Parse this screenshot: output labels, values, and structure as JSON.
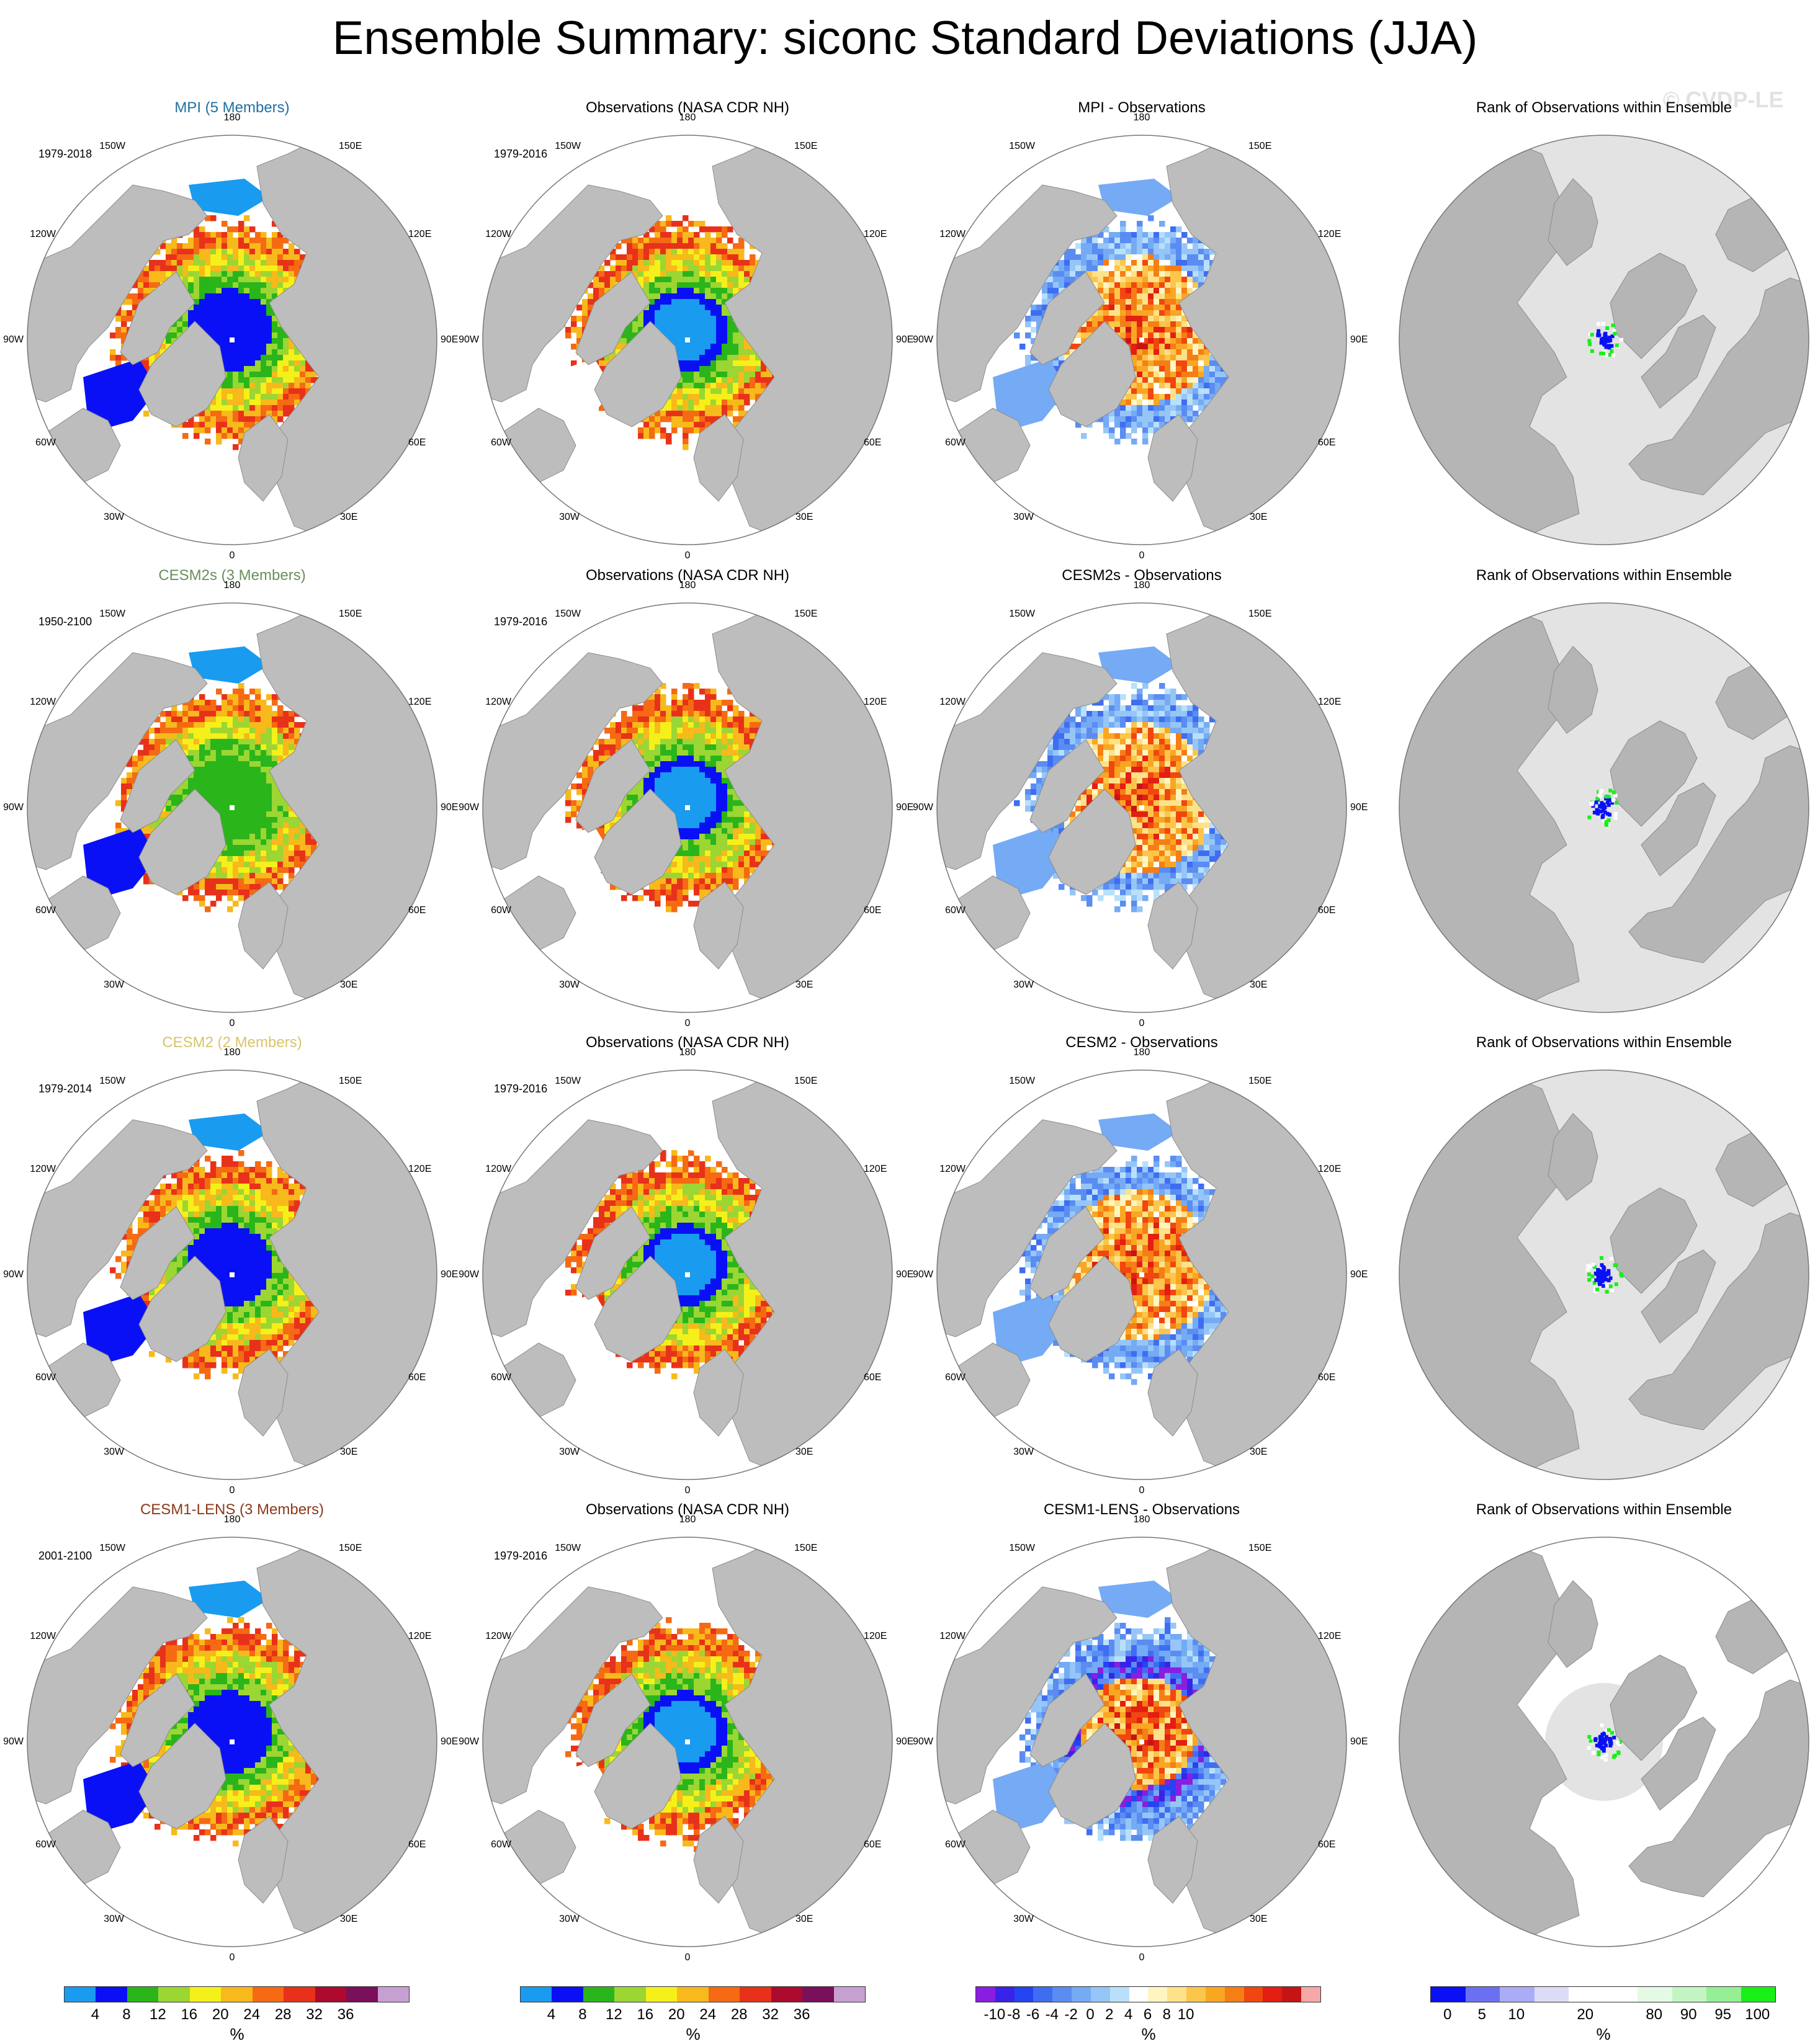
{
  "title": "Ensemble Summary: siconc Standard Deviations (JJA)",
  "watermark": "© CVDP-LE",
  "rows": [
    {
      "model": "MPI (5 Members)",
      "model_color": "#1f6fa3",
      "period": "1979-2018",
      "obs_title": "Observations (NASA CDR NH)",
      "obs_period": "1979-2016",
      "diff_title": "MPI - Observations",
      "rank_title": "Rank of Observations within Ensemble"
    },
    {
      "model": "CESM2s (3 Members)",
      "model_color": "#6a8f5a",
      "period": "1950-2100",
      "obs_title": "Observations (NASA CDR NH)",
      "obs_period": "1979-2016",
      "diff_title": "CESM2s - Observations",
      "rank_title": "Rank of Observations within Ensemble"
    },
    {
      "model": "CESM2 (2 Members)",
      "model_color": "#d9c46a",
      "period": "1979-2014",
      "obs_title": "Observations (NASA CDR NH)",
      "obs_period": "1979-2016",
      "diff_title": "CESM2 - Observations",
      "rank_title": "Rank of Observations within Ensemble"
    },
    {
      "model": "CESM1-LENS (3 Members)",
      "model_color": "#8b3a1a",
      "period": "2001-2100",
      "obs_title": "Observations (NASA CDR NH)",
      "obs_period": "1979-2016",
      "diff_title": "CESM1-LENS - Observations",
      "rank_title": "Rank of Observations within Ensemble"
    }
  ],
  "longitude_labels": {
    "top": "180",
    "top_left": "150W",
    "top_right": "150E",
    "upper_left": "120W",
    "upper_right": "120E",
    "left": "90W",
    "right": "90E",
    "lower_left": "60W",
    "lower_right": "60E",
    "bottom_left": "30W",
    "bottom_right": "30E",
    "bottom": "0"
  },
  "colorbars": [
    {
      "name": "model-std",
      "colors": [
        "#199bf0",
        "#0a10f5",
        "#2ab51b",
        "#9bd633",
        "#f5f01a",
        "#f7b91b",
        "#f56a12",
        "#e8311a",
        "#ad0a2e",
        "#7a0f5a",
        "#c7a0d2"
      ],
      "labels": [
        "4",
        "8",
        "12",
        "16",
        "20",
        "24",
        "28",
        "32",
        "36"
      ],
      "unit": "%"
    },
    {
      "name": "obs-std",
      "colors": [
        "#199bf0",
        "#0a10f5",
        "#2ab51b",
        "#9bd633",
        "#f5f01a",
        "#f7b91b",
        "#f56a12",
        "#e8311a",
        "#ad0a2e",
        "#7a0f5a",
        "#c7a0d2"
      ],
      "labels": [
        "4",
        "8",
        "12",
        "16",
        "20",
        "24",
        "28",
        "32",
        "36"
      ],
      "unit": "%"
    },
    {
      "name": "difference",
      "colors": [
        "#8a1ee0",
        "#3a23e8",
        "#2444f0",
        "#3f6df2",
        "#5a8cf2",
        "#75aaf5",
        "#96c6f7",
        "#b8e0fb",
        "#ffffff",
        "#fff5c0",
        "#fde28a",
        "#fcc54b",
        "#f9a722",
        "#f57e15",
        "#f1460f",
        "#e31e12",
        "#c61414",
        "#f6a7a7"
      ],
      "labels": [
        "-10",
        "-8",
        "-6",
        "-4",
        "-2",
        "0",
        "2",
        "4",
        "6",
        "8",
        "10"
      ],
      "unit": "%"
    },
    {
      "name": "rank",
      "colors": [
        "#0a10f5",
        "#6b6ff2",
        "#aaadf5",
        "#dcdcf7",
        "#ffffff",
        "#ffffff",
        "#e5fae5",
        "#c2f5c2",
        "#95ef95",
        "#18f018"
      ],
      "labels": [
        "0",
        "5",
        "10",
        "20",
        "80",
        "90",
        "95",
        "100"
      ],
      "unit": "%"
    }
  ]
}
